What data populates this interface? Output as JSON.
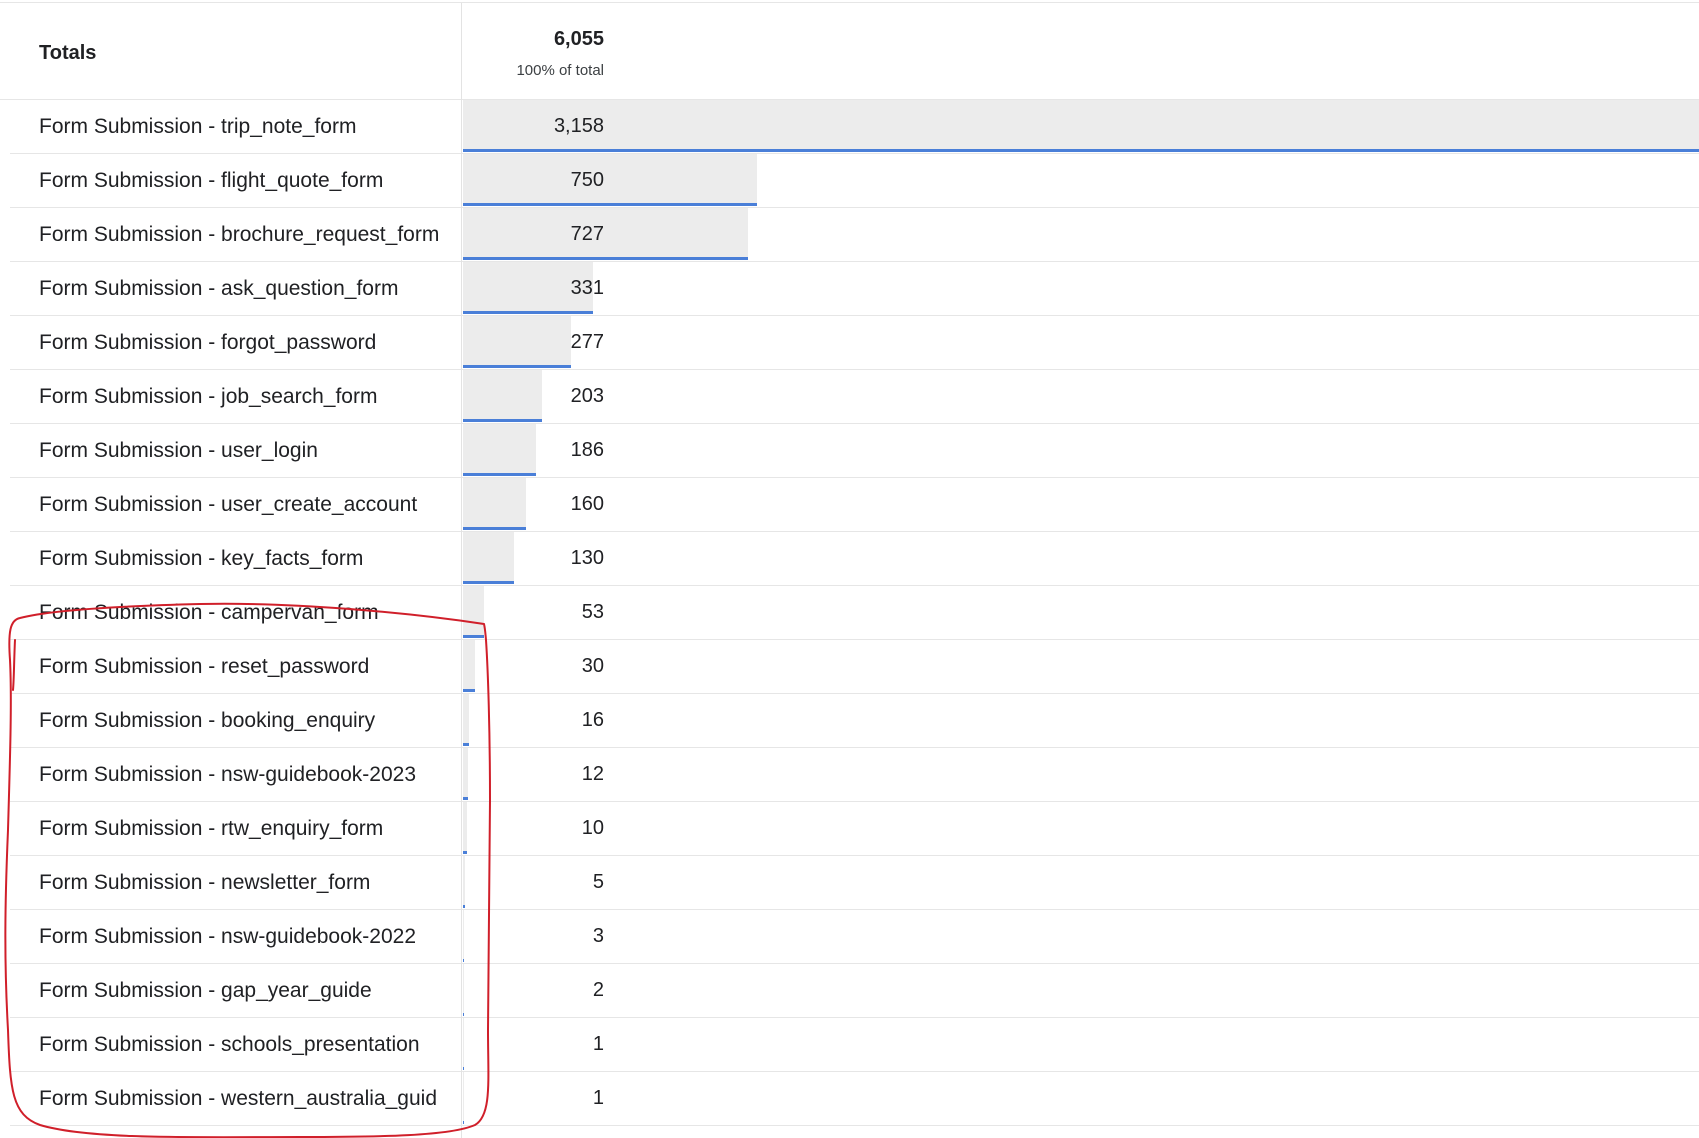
{
  "totals": {
    "label": "Totals",
    "value": "6,055",
    "percent_of_total": "100% of total"
  },
  "rows": [
    {
      "label": "Form Submission - trip_note_form",
      "value": "3,158",
      "count": 3158
    },
    {
      "label": "Form Submission - flight_quote_form",
      "value": "750",
      "count": 750
    },
    {
      "label": "Form Submission - brochure_request_form",
      "value": "727",
      "count": 727
    },
    {
      "label": "Form Submission - ask_question_form",
      "value": "331",
      "count": 331
    },
    {
      "label": "Form Submission - forgot_password",
      "value": "277",
      "count": 277
    },
    {
      "label": "Form Submission - job_search_form",
      "value": "203",
      "count": 203
    },
    {
      "label": "Form Submission - user_login",
      "value": "186",
      "count": 186
    },
    {
      "label": "Form Submission - user_create_account",
      "value": "160",
      "count": 160
    },
    {
      "label": "Form Submission - key_facts_form",
      "value": "130",
      "count": 130
    },
    {
      "label": "Form Submission - campervan_form",
      "value": "53",
      "count": 53
    },
    {
      "label": "Form Submission - reset_password",
      "value": "30",
      "count": 30
    },
    {
      "label": "Form Submission - booking_enquiry",
      "value": "16",
      "count": 16
    },
    {
      "label": "Form Submission - nsw-guidebook-2023",
      "value": "12",
      "count": 12
    },
    {
      "label": "Form Submission - rtw_enquiry_form",
      "value": "10",
      "count": 10
    },
    {
      "label": "Form Submission - newsletter_form",
      "value": "5",
      "count": 5
    },
    {
      "label": "Form Submission - nsw-guidebook-2022",
      "value": "3",
      "count": 3
    },
    {
      "label": "Form Submission - gap_year_guide",
      "value": "2",
      "count": 2
    },
    {
      "label": "Form Submission - schools_presentation",
      "value": "1",
      "count": 1
    },
    {
      "label": "Form Submission - western_australia_guid",
      "value": "1",
      "count": 1
    }
  ],
  "colors": {
    "bar_fill": "#ececec",
    "bar_line": "#4a7fd8",
    "highlight_ink": "#d01f2a"
  }
}
